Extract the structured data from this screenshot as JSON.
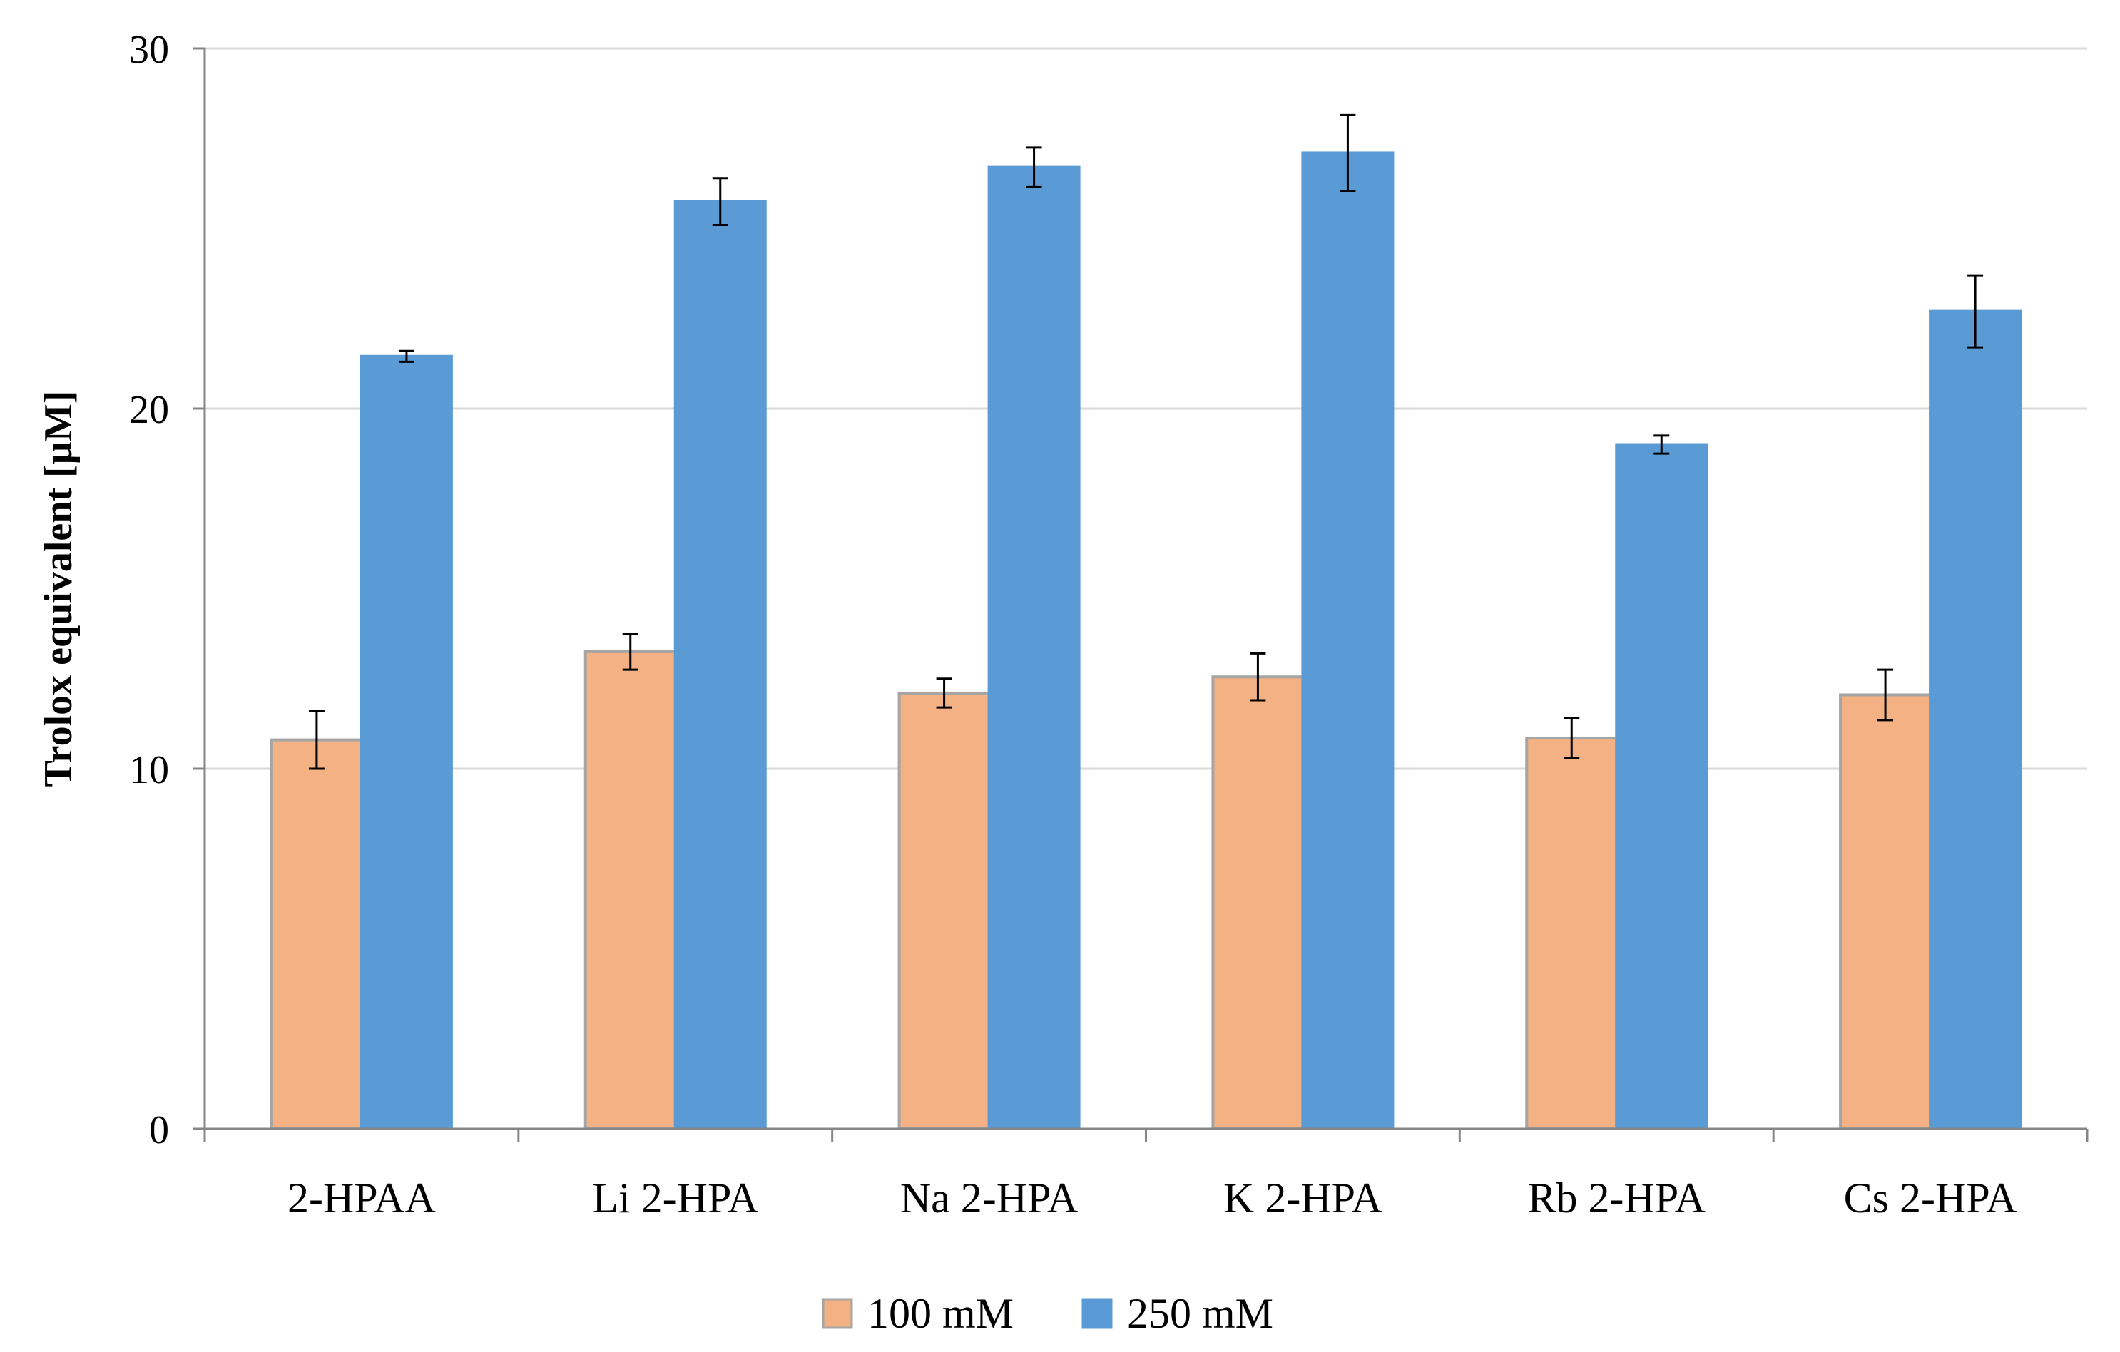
{
  "chart_data": {
    "type": "bar",
    "title": "",
    "xlabel": "",
    "ylabel": "Trolox equivalent [µM]",
    "ylim": [
      0,
      30
    ],
    "yticks": [
      0,
      10,
      20,
      30
    ],
    "grid": true,
    "legend_position": "bottom-center",
    "categories": [
      "2-HPAA",
      "Li 2-HPA",
      "Na 2-HPA",
      "K 2-HPA",
      "Rb 2-HPA",
      "Cs 2-HPA"
    ],
    "series": [
      {
        "name": "100 mM",
        "color": "#F4B183",
        "stroke": "#A5A5A5",
        "values": [
          10.8,
          13.25,
          12.1,
          12.55,
          10.85,
          12.05
        ],
        "errors": [
          0.8,
          0.5,
          0.4,
          0.65,
          0.55,
          0.7
        ]
      },
      {
        "name": "250 mM",
        "color": "#5B9BD5",
        "stroke": "#5B9BD5",
        "values": [
          21.45,
          25.75,
          26.7,
          27.1,
          19.0,
          22.7
        ],
        "errors": [
          0.15,
          0.65,
          0.55,
          1.05,
          0.25,
          1.0
        ]
      }
    ]
  }
}
